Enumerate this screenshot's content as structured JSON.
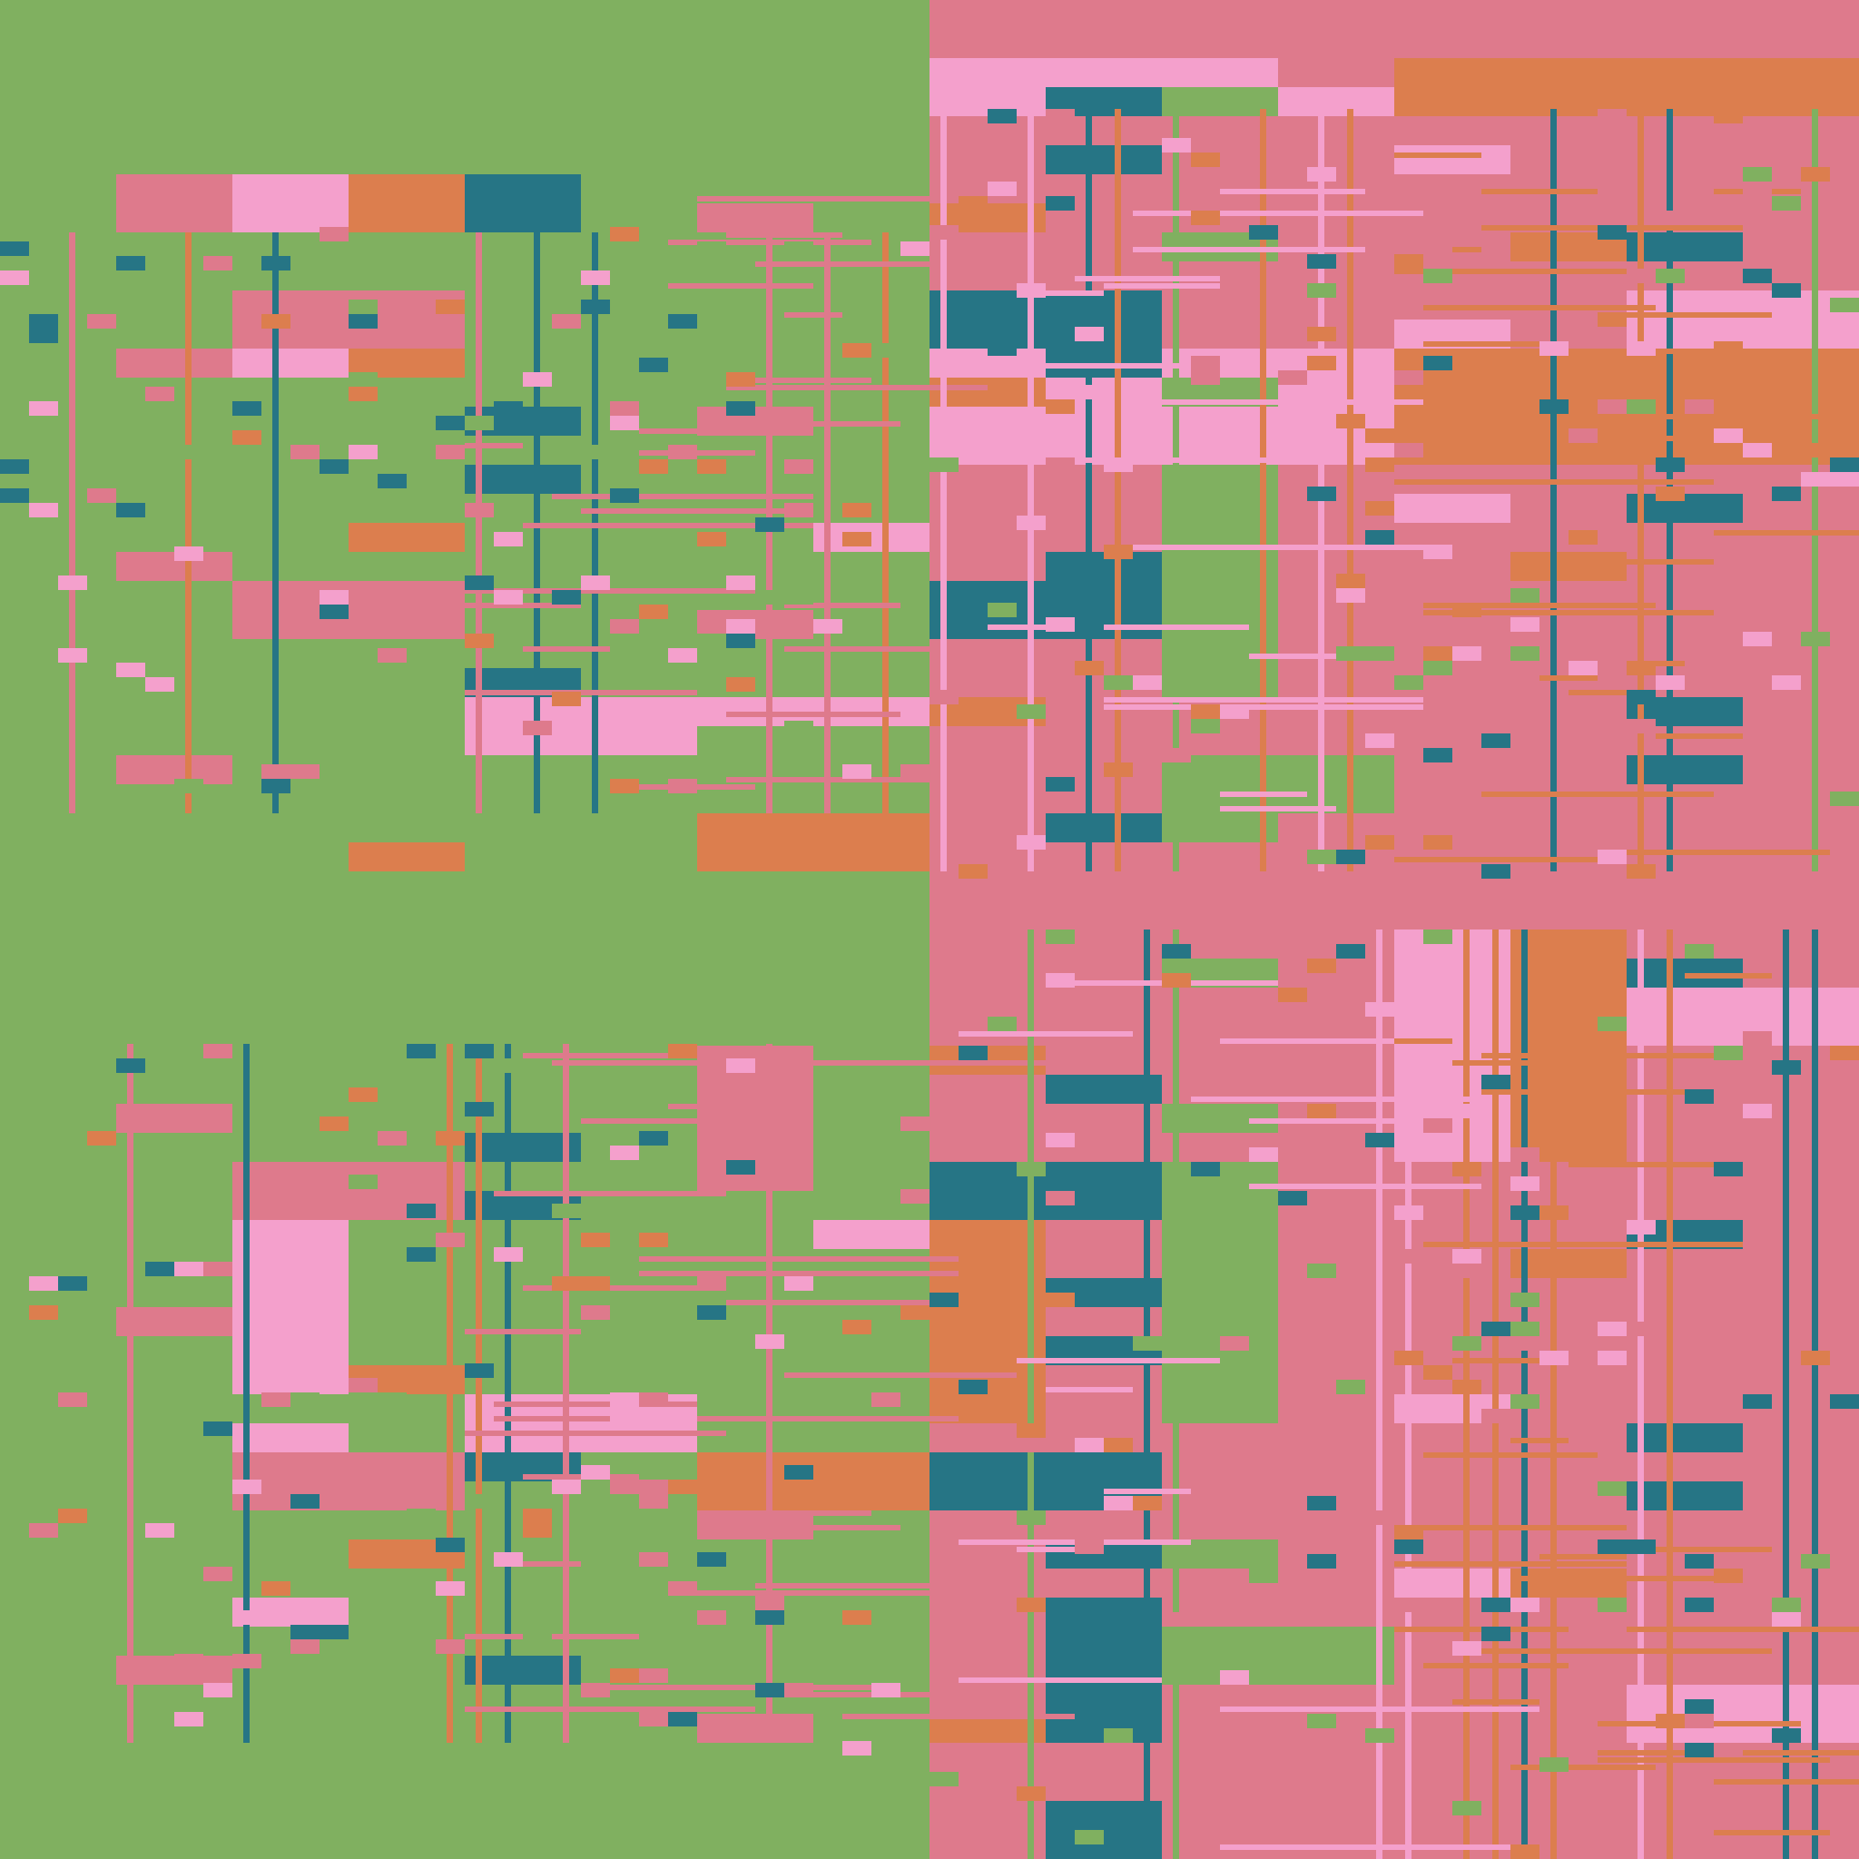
{
  "palette": {
    "green": "#80b060",
    "rose": "#de7a8c",
    "light_pink": "#f4a0cc",
    "orange": "#dc7e4e",
    "teal": "#267585"
  },
  "quadrant_colors": [
    "green",
    "rose",
    "rose",
    "green"
  ]
}
